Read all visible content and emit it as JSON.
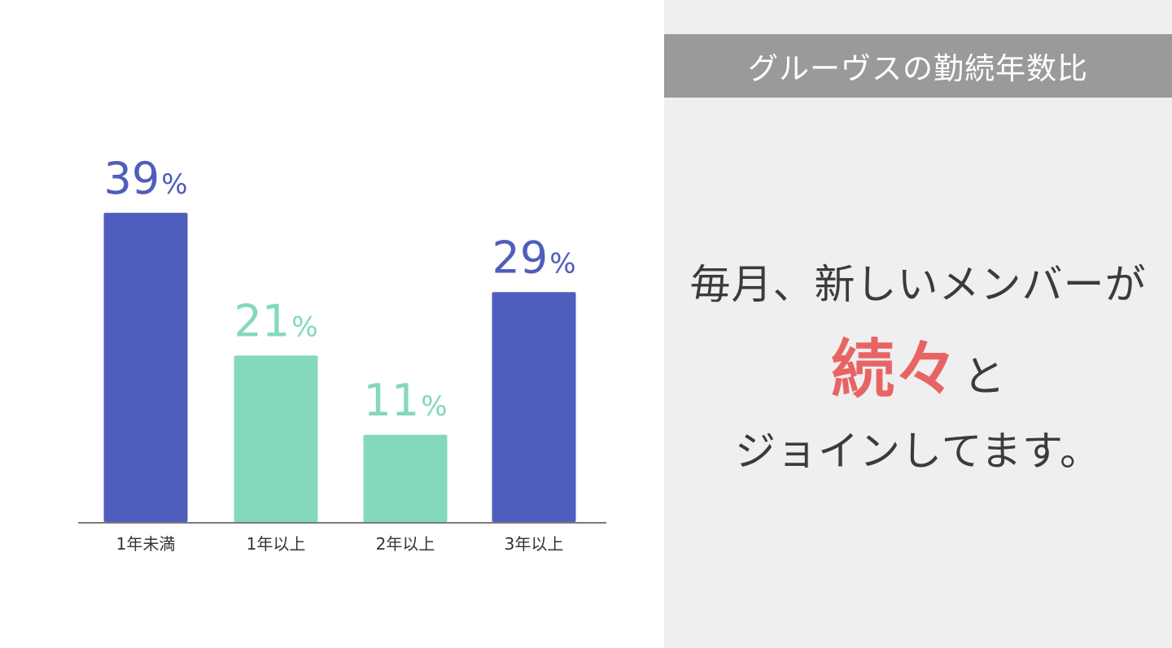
{
  "chart_data": {
    "type": "bar",
    "categories": [
      "1年未満",
      "1年以上",
      "2年以上",
      "3年以上"
    ],
    "values": [
      39,
      21,
      11,
      29
    ],
    "value_labels": [
      "39",
      "21",
      "11",
      "29"
    ],
    "unit": "%",
    "bar_colors": [
      "#4f5dbd",
      "#84d8bd",
      "#84d8bd",
      "#4f5dbd"
    ],
    "ylim": [
      0,
      40
    ],
    "grid": false,
    "legend": "none"
  },
  "panel": {
    "title": "グルーヴスの勤続年数比",
    "message_line1": "毎月、新しいメンバーが",
    "message_accent": "続々",
    "message_accent_suffix": "と",
    "message_line3": "ジョインしてます。"
  },
  "colors": {
    "header_bg": "#9a9a9a",
    "panel_bg": "#efefef",
    "accent": "#e86464",
    "text": "#3b3b3b"
  }
}
